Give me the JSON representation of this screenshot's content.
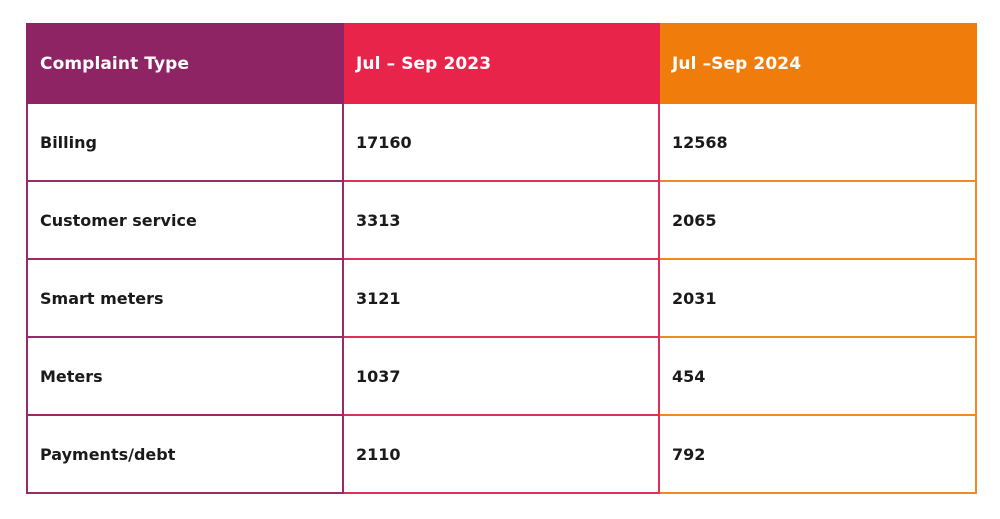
{
  "chart_data": {
    "type": "table",
    "columns": [
      "Complaint Type",
      "Jul – Sep 2023",
      "Jul –Sep 2024"
    ],
    "rows": [
      {
        "label": "Billing",
        "values": [
          "17160",
          "12568"
        ]
      },
      {
        "label": "Customer service",
        "values": [
          "3313",
          "2065"
        ]
      },
      {
        "label": "Smart meters",
        "values": [
          "3121",
          "2031"
        ]
      },
      {
        "label": "Meters",
        "values": [
          "1037",
          "454"
        ]
      },
      {
        "label": "Payments/debt",
        "values": [
          "2110",
          "792"
        ]
      }
    ]
  },
  "colors": {
    "header_col1": "#8e2464",
    "header_col2": "#e8244b",
    "header_col3": "#f07c0c"
  }
}
